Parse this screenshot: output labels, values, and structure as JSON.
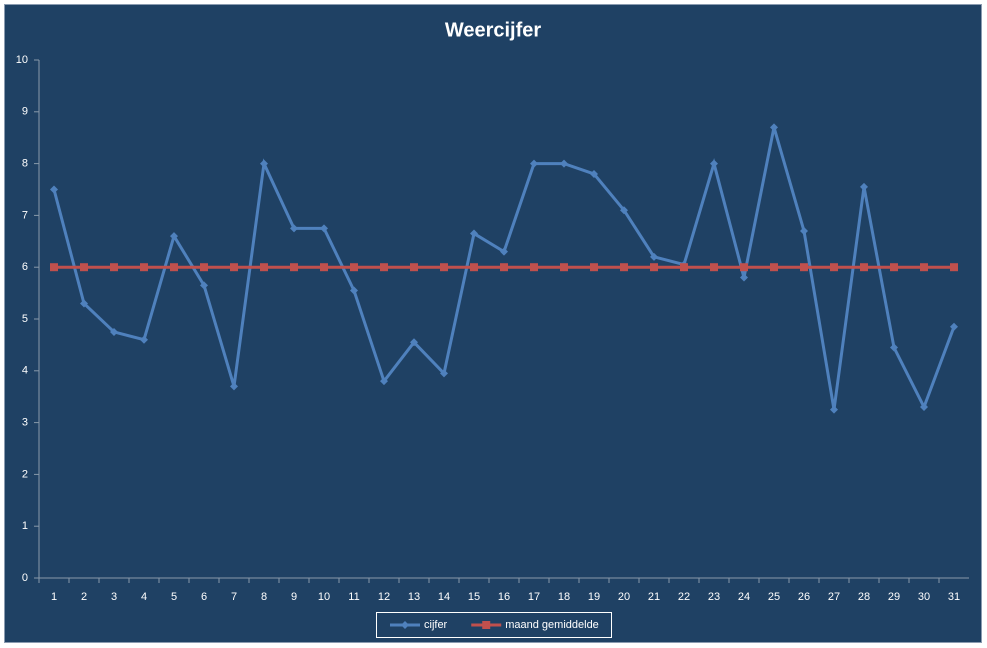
{
  "chart_data": {
    "type": "line",
    "title": "Weercijfer",
    "categories": [
      "1",
      "2",
      "3",
      "4",
      "5",
      "6",
      "7",
      "8",
      "9",
      "10",
      "11",
      "12",
      "13",
      "14",
      "15",
      "16",
      "17",
      "18",
      "19",
      "20",
      "21",
      "22",
      "23",
      "24",
      "25",
      "26",
      "27",
      "28",
      "29",
      "30",
      "31"
    ],
    "series": [
      {
        "name": "cijfer",
        "color": "#4f81bd",
        "marker": "diamond",
        "values": [
          7.5,
          5.3,
          4.75,
          4.6,
          6.6,
          5.65,
          3.7,
          8.0,
          6.75,
          6.75,
          5.55,
          3.8,
          4.55,
          3.95,
          6.65,
          6.3,
          8.0,
          8.0,
          7.8,
          7.1,
          6.2,
          6.05,
          8.0,
          5.8,
          8.7,
          6.7,
          3.25,
          7.55,
          4.45,
          3.3,
          4.85
        ]
      },
      {
        "name": "maand gemiddelde",
        "color": "#c0504d",
        "marker": "square",
        "values": [
          6.0,
          6.0,
          6.0,
          6.0,
          6.0,
          6.0,
          6.0,
          6.0,
          6.0,
          6.0,
          6.0,
          6.0,
          6.0,
          6.0,
          6.0,
          6.0,
          6.0,
          6.0,
          6.0,
          6.0,
          6.0,
          6.0,
          6.0,
          6.0,
          6.0,
          6.0,
          6.0,
          6.0,
          6.0,
          6.0,
          6.0
        ]
      }
    ],
    "ylim": [
      0,
      10
    ],
    "yticks": [
      0,
      1,
      2,
      3,
      4,
      5,
      6,
      7,
      8,
      9,
      10
    ],
    "grid": false,
    "legend": "bottom"
  }
}
